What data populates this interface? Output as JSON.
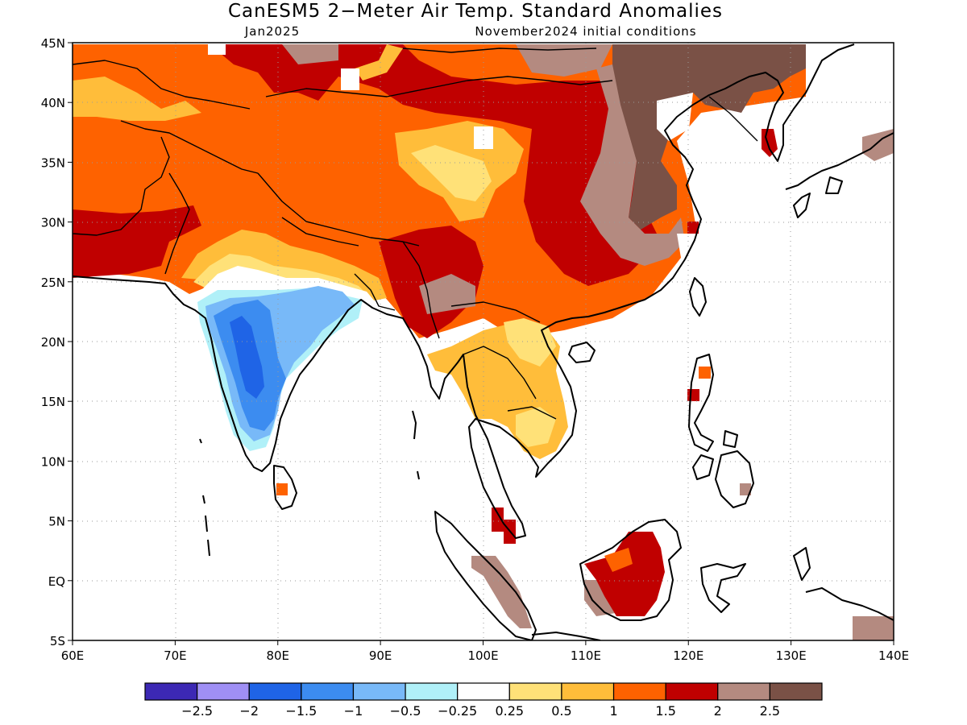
{
  "title": "CanESM5 2−Meter Air Temp. Standard Anomalies",
  "valid_period": "Jan2025",
  "initial_conditions": "November2024 initial conditions",
  "map": {
    "lon_range": [
      60,
      140
    ],
    "lat_range": [
      -5,
      45
    ],
    "x_ticks": [
      {
        "value": 60,
        "label": "60E"
      },
      {
        "value": 70,
        "label": "70E"
      },
      {
        "value": 80,
        "label": "80E"
      },
      {
        "value": 90,
        "label": "90E"
      },
      {
        "value": 100,
        "label": "100E"
      },
      {
        "value": 110,
        "label": "110E"
      },
      {
        "value": 120,
        "label": "120E"
      },
      {
        "value": 130,
        "label": "130E"
      },
      {
        "value": 140,
        "label": "140E"
      }
    ],
    "y_ticks": [
      {
        "value": -5,
        "label": "5S"
      },
      {
        "value": 0,
        "label": "EQ"
      },
      {
        "value": 5,
        "label": "5N"
      },
      {
        "value": 10,
        "label": "10N"
      },
      {
        "value": 15,
        "label": "15N"
      },
      {
        "value": 20,
        "label": "20N"
      },
      {
        "value": 25,
        "label": "25N"
      },
      {
        "value": 30,
        "label": "30N"
      },
      {
        "value": 35,
        "label": "35N"
      },
      {
        "value": 40,
        "label": "40N"
      },
      {
        "value": 45,
        "label": "45N"
      }
    ],
    "gridlines": true
  },
  "legend": {
    "colors": [
      "#3c28b4",
      "#9f8ff5",
      "#1f64e6",
      "#3c8cf0",
      "#78b9f8",
      "#b0f0f8",
      "#ffffff",
      "#ffe178",
      "#ffbd3a",
      "#fe6200",
      "#c00000",
      "#b48a80",
      "#7a5146"
    ],
    "labels": [
      "−2.5",
      "−2",
      "−1.5",
      "−1",
      "−0.5",
      "−0.25",
      "0.25",
      "0.5",
      "1",
      "1.5",
      "2",
      "2.5"
    ]
  }
}
